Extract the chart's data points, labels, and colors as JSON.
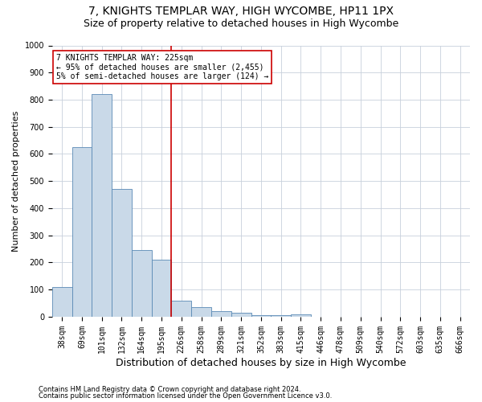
{
  "title1": "7, KNIGHTS TEMPLAR WAY, HIGH WYCOMBE, HP11 1PX",
  "title2": "Size of property relative to detached houses in High Wycombe",
  "xlabel": "Distribution of detached houses by size in High Wycombe",
  "ylabel": "Number of detached properties",
  "footer1": "Contains HM Land Registry data © Crown copyright and database right 2024.",
  "footer2": "Contains public sector information licensed under the Open Government Licence v3.0.",
  "categories": [
    "38sqm",
    "69sqm",
    "101sqm",
    "132sqm",
    "164sqm",
    "195sqm",
    "226sqm",
    "258sqm",
    "289sqm",
    "321sqm",
    "352sqm",
    "383sqm",
    "415sqm",
    "446sqm",
    "478sqm",
    "509sqm",
    "540sqm",
    "572sqm",
    "603sqm",
    "635sqm",
    "666sqm"
  ],
  "values": [
    110,
    625,
    820,
    470,
    245,
    210,
    60,
    35,
    20,
    15,
    5,
    5,
    10,
    0,
    0,
    0,
    0,
    0,
    0,
    0,
    0
  ],
  "bar_color": "#c9d9e8",
  "bar_edge_color": "#5a8ab5",
  "highlight_index": 6,
  "vline_color": "#cc0000",
  "annotation_line1": "7 KNIGHTS TEMPLAR WAY: 225sqm",
  "annotation_line2": "← 95% of detached houses are smaller (2,455)",
  "annotation_line3": "5% of semi-detached houses are larger (124) →",
  "annotation_box_color": "#cc0000",
  "ylim": [
    0,
    1000
  ],
  "yticks": [
    0,
    100,
    200,
    300,
    400,
    500,
    600,
    700,
    800,
    900,
    1000
  ],
  "title1_fontsize": 10,
  "title2_fontsize": 9,
  "xlabel_fontsize": 9,
  "ylabel_fontsize": 8,
  "tick_fontsize": 7,
  "bg_color": "#ffffff",
  "grid_color": "#c8d0dc",
  "footer_fontsize": 6
}
